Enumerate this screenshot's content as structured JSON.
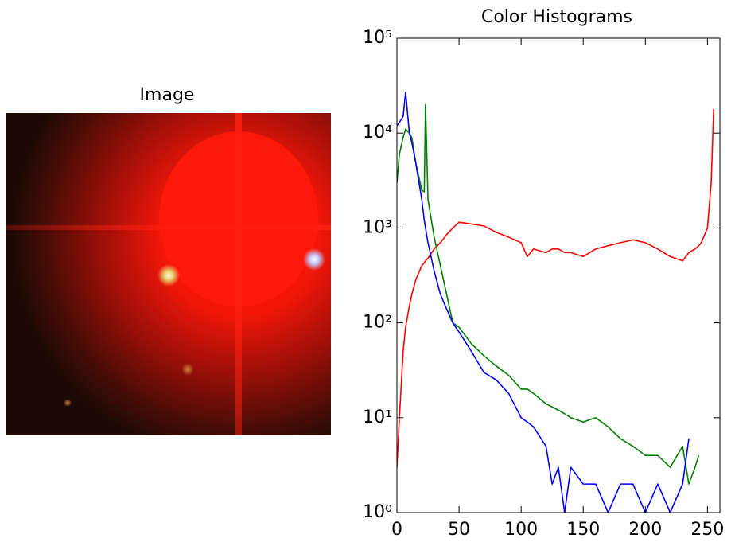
{
  "chart_data": [
    {
      "type": "image",
      "title": "Image"
    },
    {
      "type": "line",
      "title": "Color Histograms",
      "x": [
        0,
        2,
        5,
        7,
        10,
        12,
        15,
        20,
        22,
        23,
        25,
        30,
        35,
        40,
        45,
        50,
        60,
        70,
        80,
        90,
        100,
        105,
        110,
        120,
        125,
        130,
        135,
        140,
        150,
        160,
        170,
        180,
        190,
        200,
        210,
        220,
        230,
        235,
        240,
        243,
        245,
        250,
        253,
        255
      ],
      "series": [
        {
          "color": "#ff0000",
          "values": [
            3,
            10,
            50,
            90,
            150,
            200,
            280,
            400,
            430,
            450,
            480,
            600,
            700,
            850,
            1000,
            1150,
            1100,
            1050,
            900,
            800,
            700,
            500,
            600,
            550,
            600,
            600,
            550,
            550,
            500,
            600,
            650,
            700,
            750,
            700,
            600,
            500,
            450,
            550,
            600,
            650,
            700,
            1000,
            3000,
            18000
          ]
        },
        {
          "color": "#008000",
          "values": [
            3000,
            6000,
            9000,
            11000,
            10000,
            9000,
            5000,
            2500,
            2400,
            20000,
            2000,
            800,
            400,
            200,
            100,
            90,
            60,
            45,
            35,
            28,
            20,
            20,
            18,
            14,
            13,
            12,
            11,
            10,
            9,
            10,
            8,
            6,
            5,
            4,
            4,
            3,
            5,
            2,
            3,
            4,
            null,
            null,
            null,
            null
          ]
        },
        {
          "color": "#0000ff",
          "values": [
            12000,
            13000,
            15000,
            27000,
            10000,
            8000,
            5000,
            2000,
            1200,
            1000,
            700,
            350,
            200,
            140,
            100,
            80,
            50,
            30,
            25,
            18,
            10,
            9,
            8,
            5,
            2,
            3,
            1,
            3,
            2,
            2,
            1,
            2,
            2,
            1,
            2,
            1,
            2,
            6,
            null,
            null,
            null,
            null,
            null,
            null
          ]
        }
      ],
      "xlim": [
        0,
        260
      ],
      "xticks": [
        0,
        50,
        100,
        150,
        200,
        250
      ],
      "ylim": [
        1,
        100000
      ],
      "yscale": "log",
      "yticks": [
        {
          "value": 1,
          "label": "10⁰"
        },
        {
          "value": 10,
          "label": "10¹"
        },
        {
          "value": 100,
          "label": "10²"
        },
        {
          "value": 1000,
          "label": "10³"
        },
        {
          "value": 10000,
          "label": "10⁴"
        },
        {
          "value": 100000,
          "label": "10⁵"
        }
      ]
    }
  ]
}
